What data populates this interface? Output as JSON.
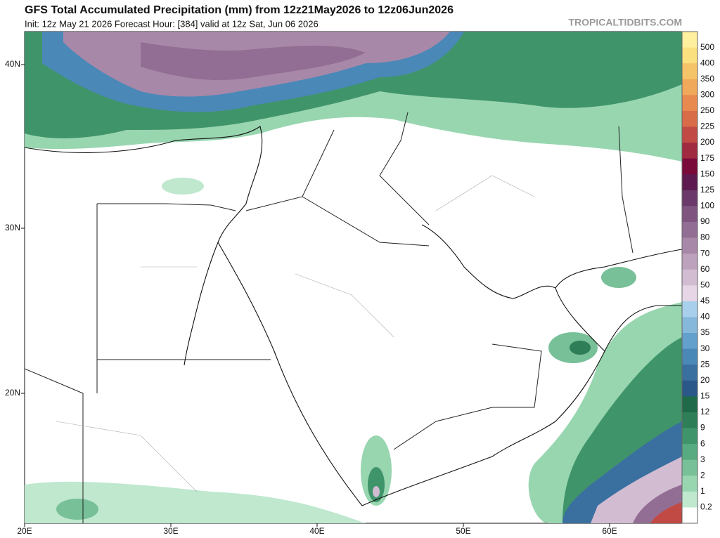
{
  "header": {
    "title": "GFS Total Accumulated Precipitation (mm) from 12z21May2026 to 12z06Jun2026",
    "subtitle": "Init: 12z May 21 2026   Forecast Hour: [384]   valid at 12z Sat, Jun 06 2026",
    "credit": "TROPICALTIDBITS.COM"
  },
  "axes": {
    "lat_labels": [
      "40N",
      "30N",
      "20N"
    ],
    "lon_labels": [
      "20E",
      "30E",
      "40E",
      "50E",
      "60E"
    ]
  },
  "colorbar": {
    "labels": [
      500,
      400,
      350,
      300,
      250,
      225,
      200,
      175,
      150,
      125,
      100,
      90,
      80,
      70,
      60,
      50,
      45,
      40,
      35,
      30,
      25,
      20,
      15,
      12,
      9,
      6,
      3,
      2,
      1,
      0.2
    ],
    "colors": [
      "#fff0a0",
      "#fbe07f",
      "#f6c468",
      "#f0a85a",
      "#e88a50",
      "#d86c48",
      "#c24a44",
      "#a02a40",
      "#7a0a3a",
      "#5e1a4e",
      "#6b3a6a",
      "#7f5580",
      "#936e94",
      "#a888a8",
      "#bda2bd",
      "#d2bcd2",
      "#e6d6e6",
      "#a8d0ec",
      "#86b8dc",
      "#64a0cc",
      "#4a88b8",
      "#3a70a0",
      "#2a5888",
      "#1f6a48",
      "#2e7e58",
      "#40946a",
      "#58aa80",
      "#78c098",
      "#98d6b0",
      "#bfe8cf",
      "#ffffff"
    ]
  }
}
